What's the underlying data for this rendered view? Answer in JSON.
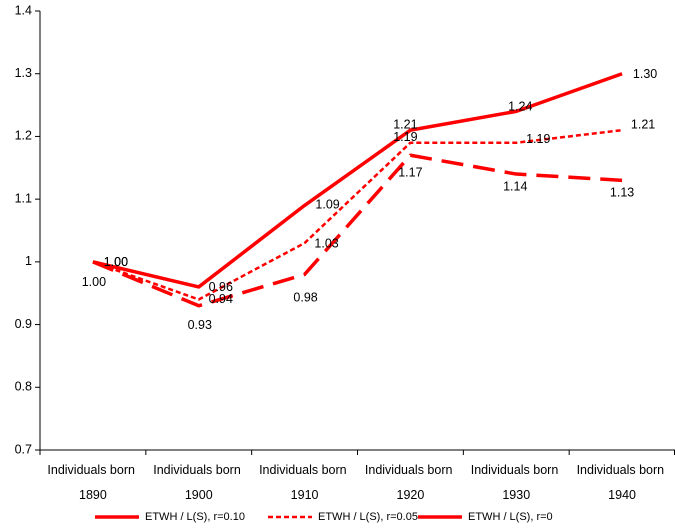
{
  "chart_data": {
    "type": "line",
    "categories": [
      "Individuals born 1890",
      "Individuals born 1900",
      "Individuals born 1910",
      "Individuals born 1920",
      "Individuals born 1930",
      "Individuals born 1940"
    ],
    "series": [
      {
        "name": "ETWH / L(S), r=0.10",
        "color": "#ff0000",
        "dash": "long",
        "values": [
          1.0,
          0.93,
          0.98,
          1.17,
          1.14,
          1.13
        ],
        "value_labels": [
          "1.00",
          "0.93",
          "0.98",
          "1.17",
          "1.14",
          "1.13"
        ]
      },
      {
        "name": "ETWH / L(S), r=0.05",
        "color": "#ff0000",
        "dash": "short",
        "values": [
          1.0,
          0.94,
          1.03,
          1.19,
          1.19,
          1.21
        ],
        "value_labels": [
          "1.00",
          "0.94",
          "1.03",
          "1.19",
          "1.19",
          "1.21"
        ]
      },
      {
        "name": "ETWH / L(S), r=0",
        "color": "#ff0000",
        "dash": "solid",
        "values": [
          1.0,
          0.96,
          1.09,
          1.21,
          1.24,
          1.3
        ],
        "value_labels": [
          "1.00",
          "0.96",
          "1.09",
          "1.21",
          "1.24",
          "1.30"
        ]
      }
    ],
    "ylim": [
      0.7,
      1.4
    ],
    "yticks": [
      0.7,
      0.8,
      0.9,
      1,
      1.1,
      1.2,
      1.3,
      1.4
    ],
    "grid": false,
    "legend": "bottom"
  }
}
